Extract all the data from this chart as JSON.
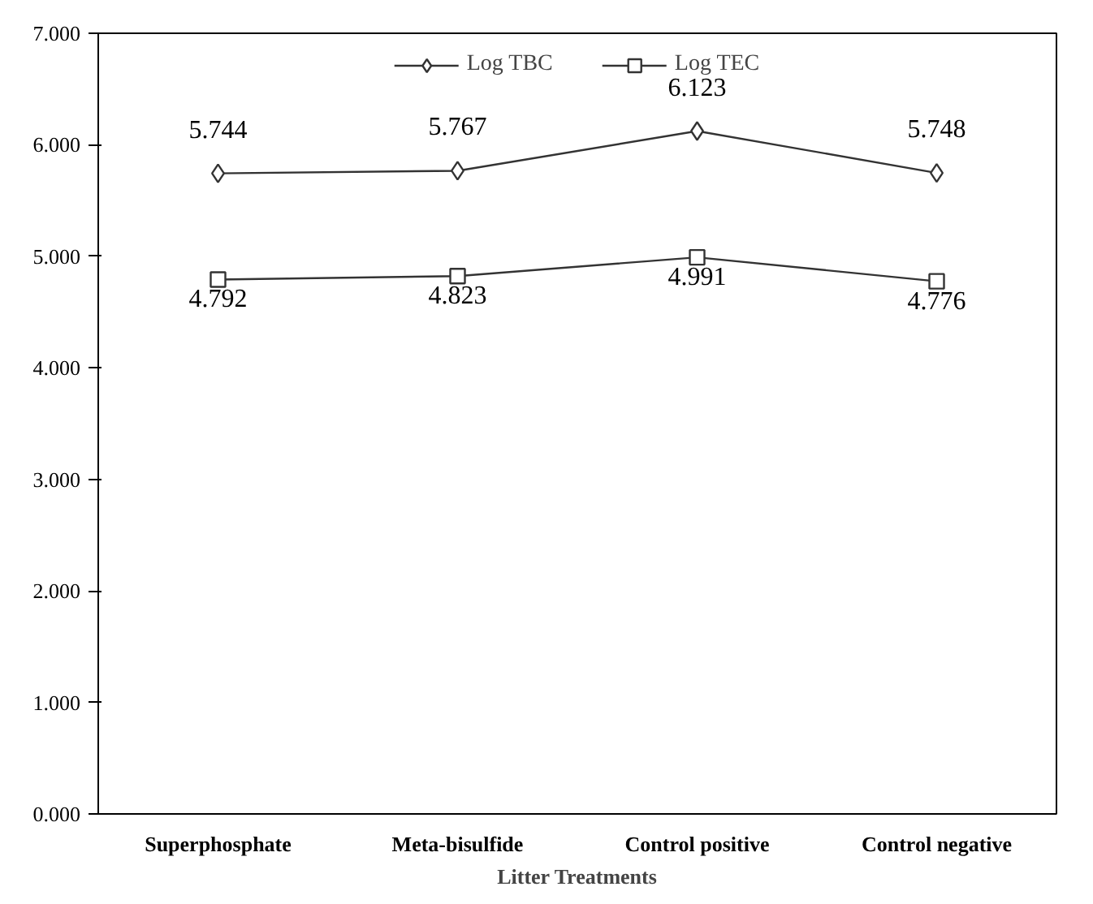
{
  "chart_data": {
    "type": "line",
    "xlabel": "Litter Treatments",
    "categories": [
      "Superphosphate",
      "Meta-bisulfide",
      "Control positive",
      "Control negative"
    ],
    "series": [
      {
        "name": "Log TBC",
        "color": "#333333",
        "marker": "diamond",
        "values": [
          5.744,
          5.767,
          6.123,
          5.748
        ]
      },
      {
        "name": "Log TEC",
        "color": "#333333",
        "marker": "square",
        "values": [
          4.792,
          4.823,
          4.991,
          4.776
        ]
      }
    ],
    "ylim": [
      0,
      7
    ],
    "yticks": [
      {
        "value": 0,
        "label": "0.000"
      },
      {
        "value": 1,
        "label": "1.000"
      },
      {
        "value": 2,
        "label": "2.000"
      },
      {
        "value": 3,
        "label": "3.000"
      },
      {
        "value": 4,
        "label": "4.000"
      },
      {
        "value": 5,
        "label": "5.000"
      },
      {
        "value": 6,
        "label": "6.000"
      },
      {
        "value": 7,
        "label": "7.000"
      }
    ],
    "data_labels": true,
    "legend": "top",
    "grid": false
  }
}
